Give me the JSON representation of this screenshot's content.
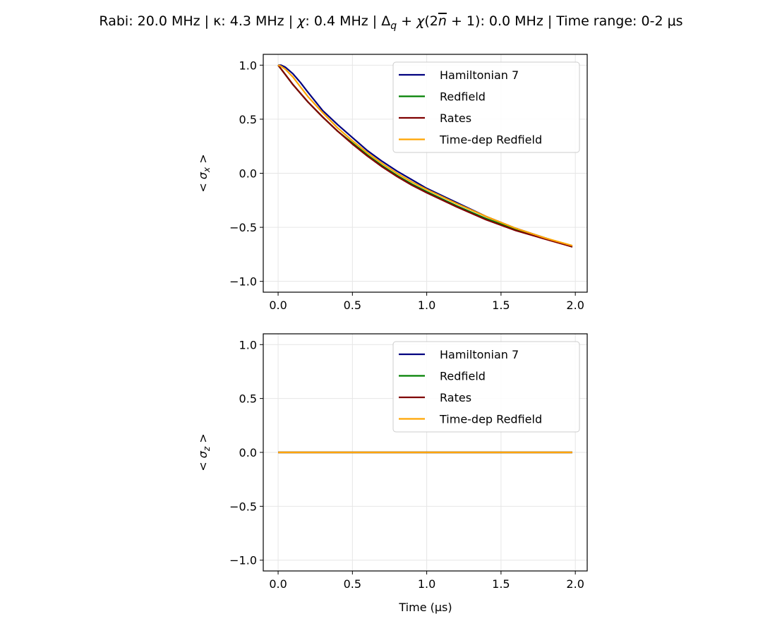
{
  "figure": {
    "title_parts": {
      "rabi": "Rabi: 20.0 MHz | κ: 4.3 MHz | ",
      "chi_symbol": "χ",
      "chi_value": ": 0.4 MHz | ",
      "delta_symbol": "Δ",
      "delta_sub": "q",
      "plus": " + ",
      "chi2": "χ",
      "paren_open": "(2",
      "nbar": "n",
      "paren_close": " + 1)",
      "rest": ": 0.0 MHz | Time range: 0-2 μs"
    },
    "xlabel": "Time (μs)"
  },
  "colors": {
    "hamiltonian": "#00007f",
    "redfield": "#008000",
    "rates": "#7f0000",
    "timedep": "#ffa500",
    "grid": "#e6e6e6"
  },
  "chart_data": [
    {
      "type": "line",
      "name": "sigma_x",
      "ylabel_symbol": "σ",
      "ylabel_sub": "x",
      "xlim": [
        -0.1,
        2.08
      ],
      "ylim": [
        -1.1,
        1.1
      ],
      "xticks": [
        0.0,
        0.5,
        1.0,
        1.5,
        2.0
      ],
      "xtick_labels": [
        "0.0",
        "0.5",
        "1.0",
        "1.5",
        "2.0"
      ],
      "yticks": [
        1.0,
        0.5,
        0.0,
        -0.5,
        -1.0
      ],
      "ytick_labels": [
        "1.0",
        "0.5",
        "0.0",
        "−0.5",
        "−1.0"
      ],
      "grid": true,
      "legend_position": "top-right",
      "series": [
        {
          "name": "Hamiltonian 7",
          "color_key": "hamiltonian",
          "x": [
            0.0,
            0.02,
            0.05,
            0.1,
            0.15,
            0.2,
            0.3,
            0.4,
            0.5,
            0.6,
            0.7,
            0.8,
            0.9,
            1.0,
            1.2,
            1.4,
            1.6,
            1.8,
            1.98
          ],
          "y": [
            1.0,
            1.0,
            0.98,
            0.92,
            0.84,
            0.75,
            0.58,
            0.45,
            0.33,
            0.21,
            0.11,
            0.02,
            -0.06,
            -0.14,
            -0.27,
            -0.4,
            -0.51,
            -0.6,
            -0.68
          ]
        },
        {
          "name": "Redfield",
          "color_key": "redfield",
          "x": [
            0.0,
            0.05,
            0.1,
            0.2,
            0.3,
            0.4,
            0.5,
            0.6,
            0.7,
            0.8,
            0.9,
            1.0,
            1.2,
            1.4,
            1.6,
            1.8,
            1.98
          ],
          "y": [
            1.0,
            0.91,
            0.82,
            0.66,
            0.52,
            0.39,
            0.28,
            0.17,
            0.07,
            -0.02,
            -0.1,
            -0.17,
            -0.3,
            -0.42,
            -0.52,
            -0.6,
            -0.68
          ]
        },
        {
          "name": "Rates",
          "color_key": "rates",
          "x": [
            0.0,
            0.05,
            0.1,
            0.2,
            0.3,
            0.4,
            0.5,
            0.6,
            0.7,
            0.8,
            0.9,
            1.0,
            1.2,
            1.4,
            1.6,
            1.8,
            1.98
          ],
          "y": [
            1.0,
            0.91,
            0.82,
            0.66,
            0.52,
            0.39,
            0.27,
            0.16,
            0.06,
            -0.03,
            -0.11,
            -0.18,
            -0.31,
            -0.43,
            -0.53,
            -0.61,
            -0.68
          ]
        },
        {
          "name": "Time-dep Redfield",
          "color_key": "timedep",
          "x": [
            0.0,
            0.02,
            0.05,
            0.1,
            0.15,
            0.2,
            0.3,
            0.4,
            0.5,
            0.6,
            0.7,
            0.8,
            0.9,
            1.0,
            1.2,
            1.4,
            1.6,
            1.8,
            1.98
          ],
          "y": [
            1.0,
            0.99,
            0.96,
            0.89,
            0.8,
            0.71,
            0.56,
            0.42,
            0.3,
            0.19,
            0.09,
            0.0,
            -0.08,
            -0.15,
            -0.28,
            -0.4,
            -0.51,
            -0.6,
            -0.67
          ]
        }
      ]
    },
    {
      "type": "line",
      "name": "sigma_z",
      "ylabel_symbol": "σ",
      "ylabel_sub": "z",
      "xlabel": "Time (μs)",
      "xlim": [
        -0.1,
        2.08
      ],
      "ylim": [
        -1.1,
        1.1
      ],
      "xticks": [
        0.0,
        0.5,
        1.0,
        1.5,
        2.0
      ],
      "xtick_labels": [
        "0.0",
        "0.5",
        "1.0",
        "1.5",
        "2.0"
      ],
      "yticks": [
        1.0,
        0.5,
        0.0,
        -0.5,
        -1.0
      ],
      "ytick_labels": [
        "1.0",
        "0.5",
        "0.0",
        "−0.5",
        "−1.0"
      ],
      "grid": true,
      "legend_position": "top-right",
      "series": [
        {
          "name": "Hamiltonian 7",
          "color_key": "hamiltonian",
          "x": [
            0.0,
            1.98
          ],
          "y": [
            0.0,
            0.0
          ]
        },
        {
          "name": "Redfield",
          "color_key": "redfield",
          "x": [
            0.0,
            1.98
          ],
          "y": [
            0.0,
            0.0
          ]
        },
        {
          "name": "Rates",
          "color_key": "rates",
          "x": [
            0.0,
            1.98
          ],
          "y": [
            0.0,
            0.0
          ]
        },
        {
          "name": "Time-dep Redfield",
          "color_key": "timedep",
          "x": [
            0.0,
            1.98
          ],
          "y": [
            0.0,
            0.0
          ]
        }
      ]
    }
  ]
}
